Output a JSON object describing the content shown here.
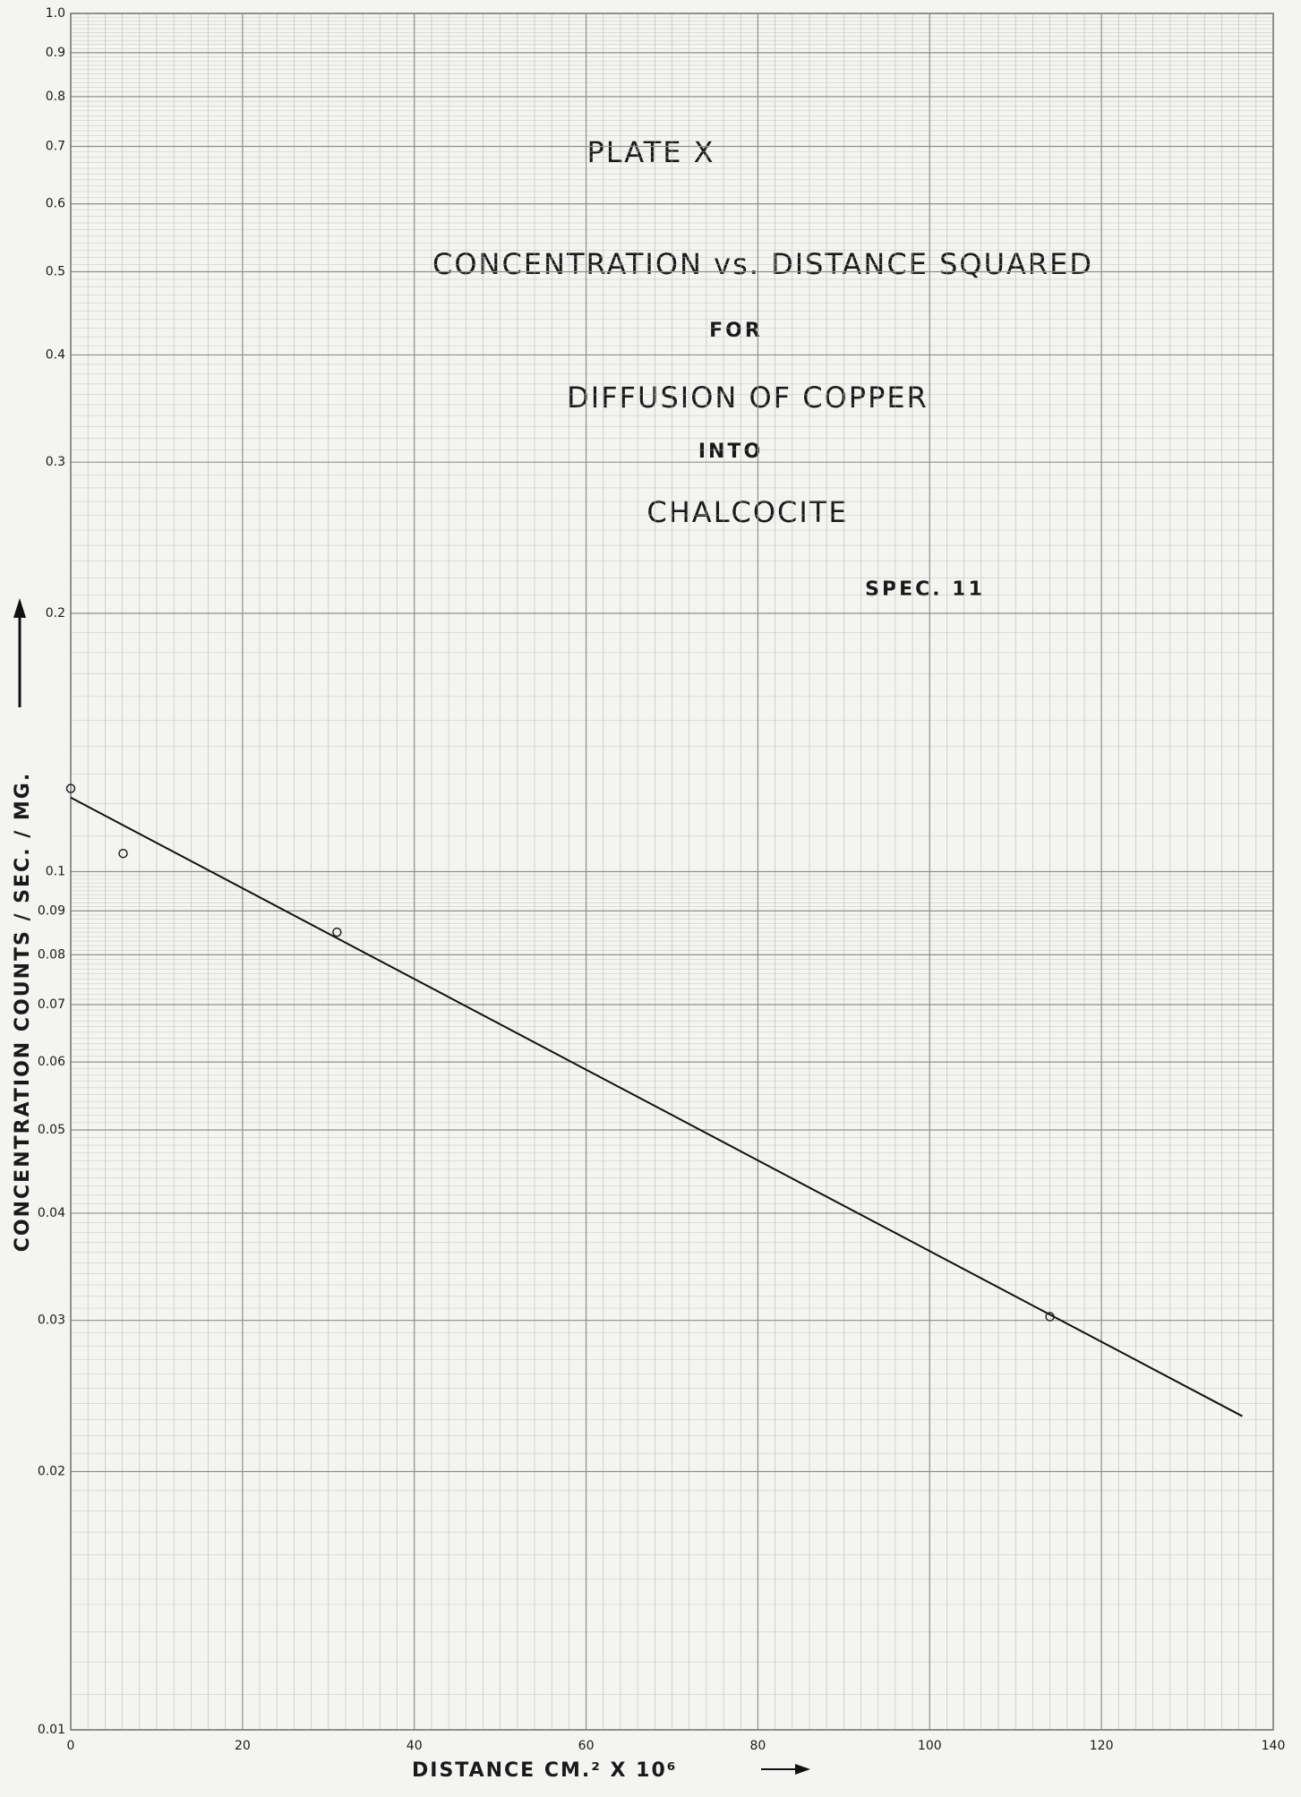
{
  "chart_data": {
    "type": "scatter",
    "title": "PLATE X",
    "subtitle_lines": [
      "CONCENTRATION vs. DISTANCE SQUARED",
      "FOR",
      "DIFFUSION OF COPPER",
      "INTO",
      "CHALCOCITE"
    ],
    "annotation": "SPEC. 11",
    "x_label": "DISTANCE     CM.² X 10⁶",
    "y_label": "CONCENTRATION  COUNTS / SEC. / MG.",
    "y_log": true,
    "grid": true,
    "xlim": [
      0,
      140
    ],
    "xticks": [
      0,
      20,
      40,
      60,
      80,
      100,
      120,
      140
    ],
    "ylim": [
      0.01,
      1
    ],
    "yticks": [
      {
        "value": 1,
        "label": "1.0"
      },
      0.9,
      0.8,
      0.7,
      0.6,
      0.5,
      0.4,
      0.3,
      0.2,
      0.1,
      0.09,
      0.08,
      0.07,
      0.06,
      0.05,
      0.04,
      0.03,
      0.02,
      0.01
    ],
    "points": {
      "color": "#222222",
      "x": [
        0,
        6.1,
        31,
        114
      ],
      "y": [
        0.125,
        0.105,
        0.085,
        0.0303
      ]
    },
    "fit_line": {
      "color": "#111111",
      "x": [
        0,
        136.4
      ],
      "y": [
        0.122,
        0.0232
      ]
    }
  }
}
